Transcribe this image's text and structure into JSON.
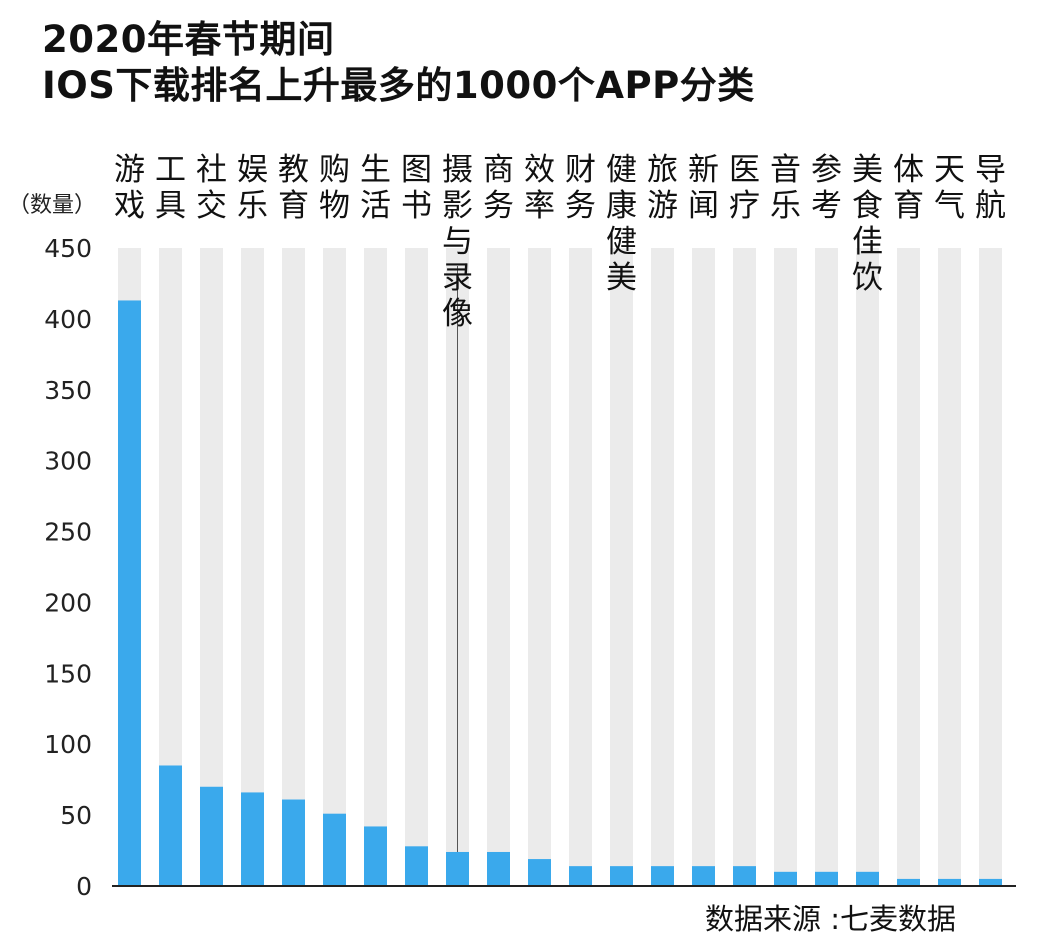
{
  "header": {
    "title_line1": "2020年春节期间",
    "title_line2": "IOS下载排名上升最多的1000个APP分类"
  },
  "footer": {
    "source": "数据来源 :七麦数据"
  },
  "chart_data": {
    "type": "bar",
    "title": "2020年春节期间 IOS下载排名上升最多的1000个APP分类",
    "ylabel": "（数量）",
    "ylim": [
      0,
      450
    ],
    "yticks": [
      0,
      50,
      100,
      150,
      200,
      250,
      300,
      350,
      400,
      450
    ],
    "categories": [
      "游戏",
      "工具",
      "社交",
      "娱乐",
      "教育",
      "购物",
      "生活",
      "图书",
      "摄影与录像",
      "商务",
      "效率",
      "财务",
      "健康健美",
      "旅游",
      "新闻",
      "医疗",
      "音乐",
      "参考",
      "美食佳饮",
      "体育",
      "天气",
      "导航"
    ],
    "values": [
      413,
      85,
      70,
      66,
      61,
      51,
      42,
      28,
      24,
      24,
      19,
      14,
      14,
      14,
      14,
      14,
      10,
      10,
      10,
      5,
      5,
      5
    ],
    "colors": {
      "bar": "#3aa9ec",
      "background_column": "#ebebeb",
      "axis": "#222222",
      "connector": "#555555"
    }
  }
}
